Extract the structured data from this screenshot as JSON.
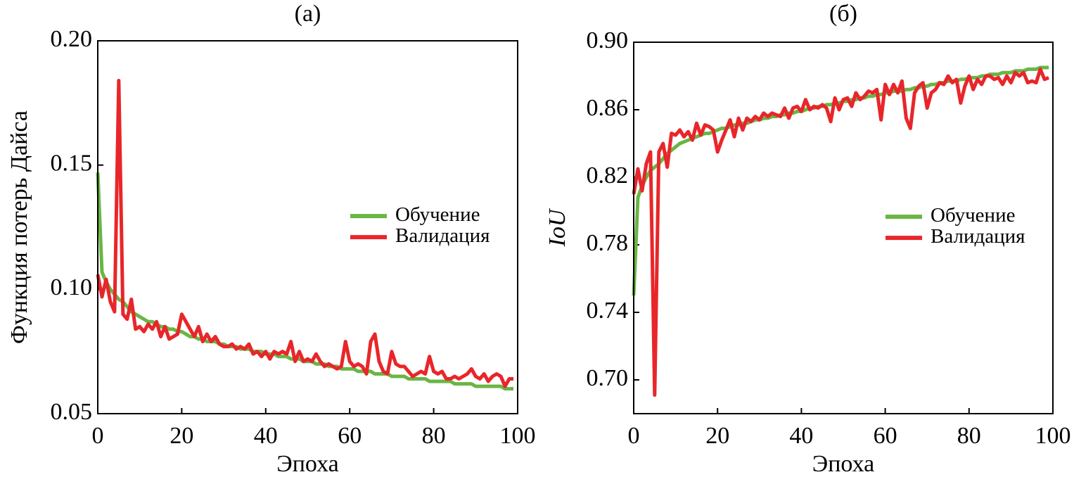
{
  "chart_data": [
    {
      "type": "line",
      "title": "(a)",
      "xlabel": "Эпоха",
      "ylabel": "Функция потерь Дайса",
      "legend": "right",
      "grid": false,
      "xlim": [
        0,
        100
      ],
      "xticks": [
        0,
        20,
        40,
        60,
        80,
        100
      ],
      "ylim": [
        0.05,
        0.2
      ],
      "yticks": [
        0.05,
        {
          "value": 0.1,
          "label": "0.10"
        },
        0.15,
        {
          "value": 0.2,
          "label": "0.20"
        }
      ],
      "x": [
        0,
        1,
        2,
        3,
        4,
        5,
        6,
        7,
        8,
        9,
        10,
        11,
        12,
        13,
        14,
        15,
        16,
        17,
        18,
        19,
        20,
        21,
        22,
        23,
        24,
        25,
        26,
        27,
        28,
        29,
        30,
        31,
        32,
        33,
        34,
        35,
        36,
        37,
        38,
        39,
        40,
        41,
        42,
        43,
        44,
        45,
        46,
        47,
        48,
        49,
        50,
        51,
        52,
        53,
        54,
        55,
        56,
        57,
        58,
        59,
        60,
        61,
        62,
        63,
        64,
        65,
        66,
        67,
        68,
        69,
        70,
        71,
        72,
        73,
        74,
        75,
        76,
        77,
        78,
        79,
        80,
        81,
        82,
        83,
        84,
        85,
        86,
        87,
        88,
        89,
        90,
        91,
        92,
        93,
        94,
        95,
        96,
        97,
        98,
        99
      ],
      "series": [
        {
          "name": "Обучение",
          "color": "#6ab545",
          "values": [
            0.147,
            0.107,
            0.103,
            0.1,
            0.098,
            0.096,
            0.095,
            0.093,
            0.091,
            0.09,
            0.089,
            0.088,
            0.087,
            0.087,
            0.086,
            0.085,
            0.085,
            0.084,
            0.084,
            0.083,
            0.083,
            0.082,
            0.081,
            0.081,
            0.08,
            0.08,
            0.079,
            0.079,
            0.079,
            0.078,
            0.078,
            0.077,
            0.077,
            0.077,
            0.076,
            0.076,
            0.076,
            0.075,
            0.075,
            0.075,
            0.074,
            0.074,
            0.074,
            0.073,
            0.073,
            0.073,
            0.072,
            0.072,
            0.072,
            0.071,
            0.071,
            0.071,
            0.07,
            0.07,
            0.07,
            0.069,
            0.069,
            0.069,
            0.068,
            0.068,
            0.068,
            0.068,
            0.067,
            0.067,
            0.067,
            0.067,
            0.066,
            0.066,
            0.066,
            0.066,
            0.065,
            0.065,
            0.065,
            0.065,
            0.064,
            0.064,
            0.064,
            0.064,
            0.064,
            0.063,
            0.063,
            0.063,
            0.063,
            0.063,
            0.063,
            0.062,
            0.062,
            0.062,
            0.062,
            0.062,
            0.061,
            0.061,
            0.061,
            0.061,
            0.061,
            0.061,
            0.061,
            0.06,
            0.06,
            0.06
          ]
        },
        {
          "name": "Валидация",
          "color": "#e8262a",
          "values": [
            0.106,
            0.097,
            0.104,
            0.095,
            0.091,
            0.184,
            0.09,
            0.088,
            0.096,
            0.084,
            0.085,
            0.083,
            0.086,
            0.084,
            0.087,
            0.081,
            0.085,
            0.08,
            0.081,
            0.082,
            0.09,
            0.087,
            0.084,
            0.081,
            0.085,
            0.079,
            0.082,
            0.079,
            0.081,
            0.078,
            0.077,
            0.077,
            0.078,
            0.076,
            0.077,
            0.076,
            0.078,
            0.074,
            0.075,
            0.073,
            0.075,
            0.072,
            0.075,
            0.074,
            0.075,
            0.074,
            0.079,
            0.071,
            0.075,
            0.071,
            0.072,
            0.071,
            0.074,
            0.071,
            0.069,
            0.07,
            0.069,
            0.068,
            0.069,
            0.079,
            0.071,
            0.069,
            0.07,
            0.069,
            0.066,
            0.079,
            0.082,
            0.071,
            0.067,
            0.066,
            0.075,
            0.07,
            0.069,
            0.069,
            0.067,
            0.065,
            0.066,
            0.067,
            0.066,
            0.073,
            0.067,
            0.066,
            0.067,
            0.064,
            0.064,
            0.065,
            0.064,
            0.065,
            0.066,
            0.068,
            0.065,
            0.064,
            0.066,
            0.063,
            0.065,
            0.066,
            0.065,
            0.061,
            0.064,
            0.064
          ]
        }
      ]
    },
    {
      "type": "line",
      "title": "(б)",
      "xlabel": "Эпоха",
      "ylabel": "IoU",
      "legend": "right",
      "grid": false,
      "xlim": [
        0,
        100
      ],
      "xticks": [
        0,
        20,
        40,
        60,
        80,
        100
      ],
      "ylim": [
        0.68,
        0.9
      ],
      "yticks": [
        {
          "value": 0.7,
          "label": "0.70"
        },
        0.74,
        0.78,
        0.82,
        0.86,
        {
          "value": 0.9,
          "label": "0.90"
        }
      ],
      "x": [
        0,
        1,
        2,
        3,
        4,
        5,
        6,
        7,
        8,
        9,
        10,
        11,
        12,
        13,
        14,
        15,
        16,
        17,
        18,
        19,
        20,
        21,
        22,
        23,
        24,
        25,
        26,
        27,
        28,
        29,
        30,
        31,
        32,
        33,
        34,
        35,
        36,
        37,
        38,
        39,
        40,
        41,
        42,
        43,
        44,
        45,
        46,
        47,
        48,
        49,
        50,
        51,
        52,
        53,
        54,
        55,
        56,
        57,
        58,
        59,
        60,
        61,
        62,
        63,
        64,
        65,
        66,
        67,
        68,
        69,
        70,
        71,
        72,
        73,
        74,
        75,
        76,
        77,
        78,
        79,
        80,
        81,
        82,
        83,
        84,
        85,
        86,
        87,
        88,
        89,
        90,
        91,
        92,
        93,
        94,
        95,
        96,
        97,
        98,
        99
      ],
      "series": [
        {
          "name": "Обучение",
          "color": "#6ab545",
          "values": [
            0.75,
            0.808,
            0.815,
            0.82,
            0.824,
            0.826,
            0.828,
            0.831,
            0.834,
            0.836,
            0.838,
            0.84,
            0.841,
            0.842,
            0.843,
            0.844,
            0.845,
            0.846,
            0.846,
            0.847,
            0.848,
            0.849,
            0.849,
            0.85,
            0.851,
            0.851,
            0.852,
            0.852,
            0.853,
            0.854,
            0.854,
            0.855,
            0.855,
            0.856,
            0.856,
            0.857,
            0.857,
            0.858,
            0.858,
            0.859,
            0.859,
            0.86,
            0.861,
            0.861,
            0.862,
            0.862,
            0.863,
            0.863,
            0.864,
            0.864,
            0.865,
            0.865,
            0.866,
            0.866,
            0.867,
            0.867,
            0.868,
            0.868,
            0.869,
            0.869,
            0.87,
            0.87,
            0.871,
            0.871,
            0.871,
            0.872,
            0.872,
            0.873,
            0.873,
            0.874,
            0.874,
            0.875,
            0.875,
            0.876,
            0.876,
            0.877,
            0.877,
            0.877,
            0.878,
            0.878,
            0.879,
            0.879,
            0.879,
            0.88,
            0.88,
            0.881,
            0.881,
            0.881,
            0.882,
            0.882,
            0.882,
            0.883,
            0.883,
            0.883,
            0.884,
            0.884,
            0.884,
            0.885,
            0.885,
            0.885
          ]
        },
        {
          "name": "Валидация",
          "color": "#e8262a",
          "values": [
            0.81,
            0.825,
            0.812,
            0.828,
            0.835,
            0.691,
            0.835,
            0.84,
            0.826,
            0.846,
            0.845,
            0.848,
            0.844,
            0.847,
            0.842,
            0.852,
            0.845,
            0.851,
            0.85,
            0.848,
            0.835,
            0.842,
            0.848,
            0.854,
            0.844,
            0.855,
            0.848,
            0.855,
            0.853,
            0.856,
            0.854,
            0.858,
            0.856,
            0.858,
            0.857,
            0.856,
            0.861,
            0.855,
            0.861,
            0.862,
            0.859,
            0.866,
            0.86,
            0.862,
            0.861,
            0.863,
            0.861,
            0.853,
            0.867,
            0.86,
            0.866,
            0.867,
            0.862,
            0.87,
            0.866,
            0.868,
            0.871,
            0.87,
            0.872,
            0.854,
            0.875,
            0.869,
            0.875,
            0.87,
            0.877,
            0.855,
            0.849,
            0.87,
            0.874,
            0.876,
            0.861,
            0.87,
            0.872,
            0.876,
            0.875,
            0.88,
            0.876,
            0.878,
            0.864,
            0.874,
            0.88,
            0.872,
            0.878,
            0.875,
            0.88,
            0.88,
            0.878,
            0.879,
            0.875,
            0.88,
            0.876,
            0.882,
            0.88,
            0.882,
            0.876,
            0.877,
            0.876,
            0.884,
            0.878,
            0.879
          ]
        }
      ]
    }
  ]
}
